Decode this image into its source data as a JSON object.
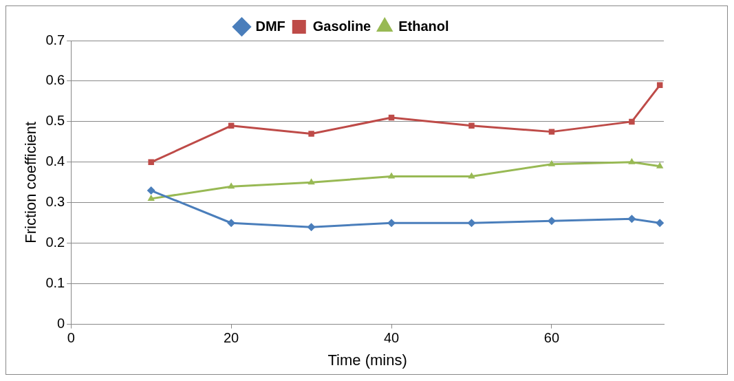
{
  "chart_data": {
    "type": "line",
    "xlabel": "Time (mins)",
    "ylabel": "Friction coefficient",
    "xlim": [
      0,
      74
    ],
    "xticks": [
      0,
      20,
      40,
      60
    ],
    "ylim": [
      0,
      0.7
    ],
    "yticks": [
      0,
      0.1,
      0.2,
      0.3,
      0.4,
      0.5,
      0.6,
      0.7
    ],
    "grid": "y",
    "legend": "top",
    "line_style": "solid",
    "x": [
      10,
      20,
      30,
      40,
      50,
      60,
      70,
      73.5
    ],
    "series": [
      {
        "name": "DMF",
        "color": "#4a7ebb",
        "marker": "diamond",
        "values": [
          0.33,
          0.25,
          0.24,
          0.25,
          0.25,
          0.255,
          0.26,
          0.25
        ]
      },
      {
        "name": "Gasoline",
        "color": "#be4b48",
        "marker": "square",
        "values": [
          0.4,
          0.49,
          0.47,
          0.51,
          0.49,
          0.475,
          0.5,
          0.59
        ]
      },
      {
        "name": "Ethanol",
        "color": "#98b954",
        "marker": "triangle",
        "values": [
          0.31,
          0.34,
          0.35,
          0.365,
          0.365,
          0.395,
          0.4,
          0.39
        ]
      }
    ]
  }
}
